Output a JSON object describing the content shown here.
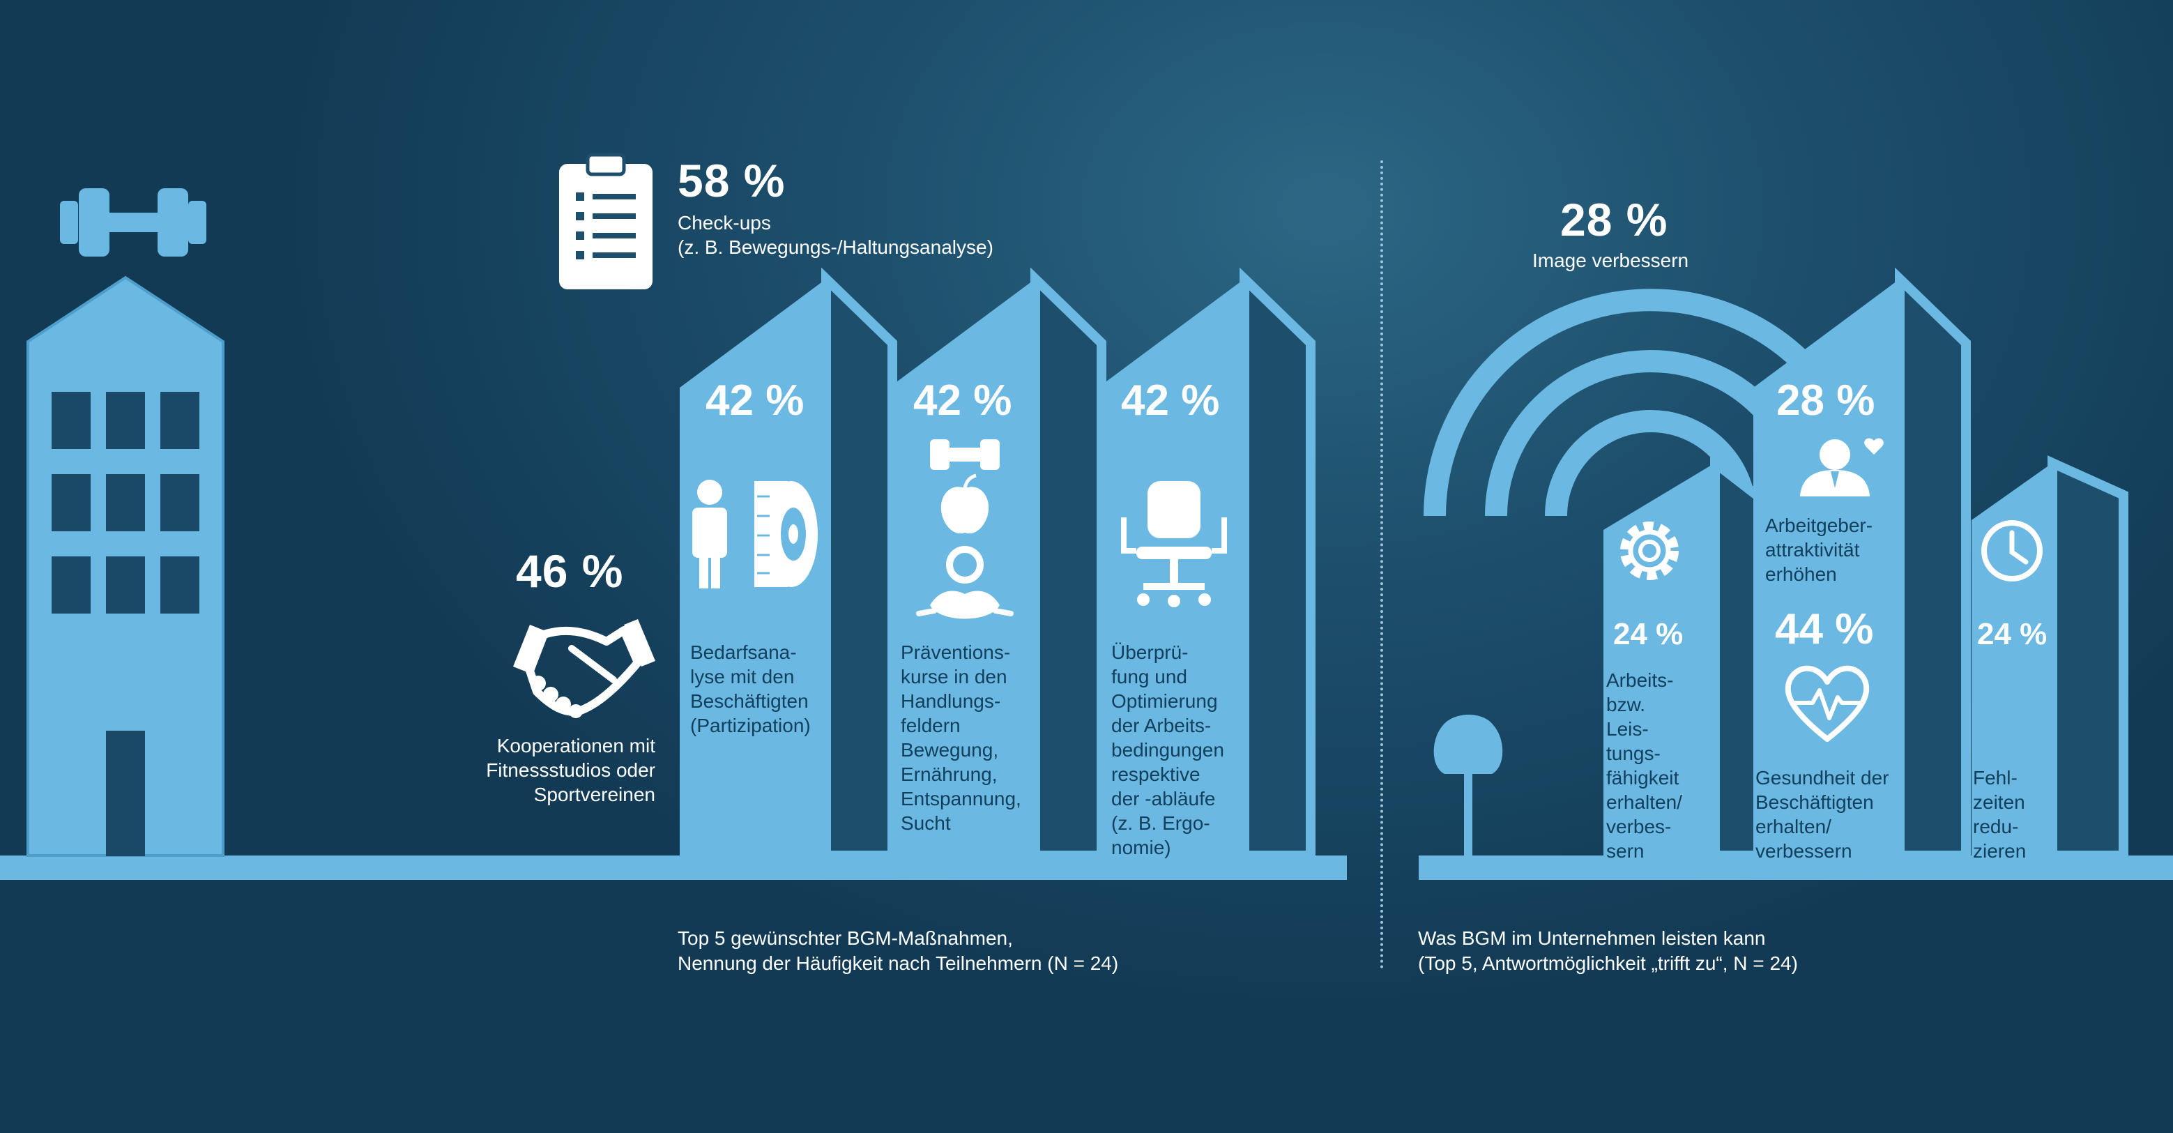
{
  "colors": {
    "building": "#6bb8e2",
    "building_shade": "#5aaad6",
    "background": "#1d4f6c",
    "icon": "#ffffff",
    "dark_text": "#12405c"
  },
  "left_section": {
    "checkups": {
      "value": "58 %",
      "label_line1": "Check-ups",
      "label_line2": "(z. B. Bewegungs-/Haltungsanalyse)",
      "icon": "clipboard-icon"
    },
    "cooperation": {
      "value": "46 %",
      "label_lines": [
        "Kooperationen mit",
        "Fitnessstudios oder",
        "Sportvereinen"
      ],
      "icon": "handshake-icon"
    },
    "needs": {
      "value": "42 %",
      "label_lines": [
        "Bedarfsana-",
        "lyse mit den",
        "Beschäftigten",
        "(Partizipation)"
      ],
      "icons": [
        "person-icon",
        "measuring-tape-icon"
      ]
    },
    "prevention": {
      "value": "42 %",
      "label_lines": [
        "Präventions-",
        "kurse in den",
        "Handlungs-",
        "feldern",
        "Bewegung,",
        "Ernährung,",
        "Entspannung,",
        "Sucht"
      ],
      "icons": [
        "dumbbell-icon",
        "apple-icon",
        "meditation-icon"
      ]
    },
    "ergonomics": {
      "value": "42 %",
      "label_lines": [
        "Überprü-",
        "fung und",
        "Optimierung",
        "der Arbeits-",
        "bedingungen",
        "respektive",
        "der -abläufe",
        "(z. B. Ergo-",
        "nomie)"
      ],
      "icon": "office-chair-icon"
    },
    "caption_line1": "Top 5 gewünschter BGM-Maßnahmen,",
    "caption_line2": "Nennung der Häufigkeit nach Teilnehmern (N = 24)"
  },
  "right_section": {
    "image": {
      "value": "28 %",
      "label": "Image verbessern",
      "icon": "signal-arcs-icon"
    },
    "performance": {
      "value": "24 %",
      "label_lines": [
        "Arbeits-",
        "bzw.",
        "Leis-",
        "tungs-",
        "fähigkeit",
        "erhalten/",
        "verbes-",
        "sern"
      ],
      "icon": "gear-icon"
    },
    "attractiveness": {
      "value": "28 %",
      "label_lines": [
        "Arbeitgeber-",
        "attraktivität",
        "erhöhen"
      ],
      "icon": "employee-heart-icon"
    },
    "health": {
      "value": "44 %",
      "label_lines": [
        "Gesundheit der",
        "Beschäftigten",
        "erhalten/",
        "verbessern"
      ],
      "icon": "heart-pulse-icon"
    },
    "absence": {
      "value": "24 %",
      "label_lines": [
        "Fehl-",
        "zeiten",
        "redu-",
        "zieren"
      ],
      "icon": "clock-icon"
    },
    "caption_line1": "Was BGM im Unternehmen leisten kann",
    "caption_line2": "(Top 5, Antwortmöglichkeit „trifft zu“, N = 24)"
  }
}
